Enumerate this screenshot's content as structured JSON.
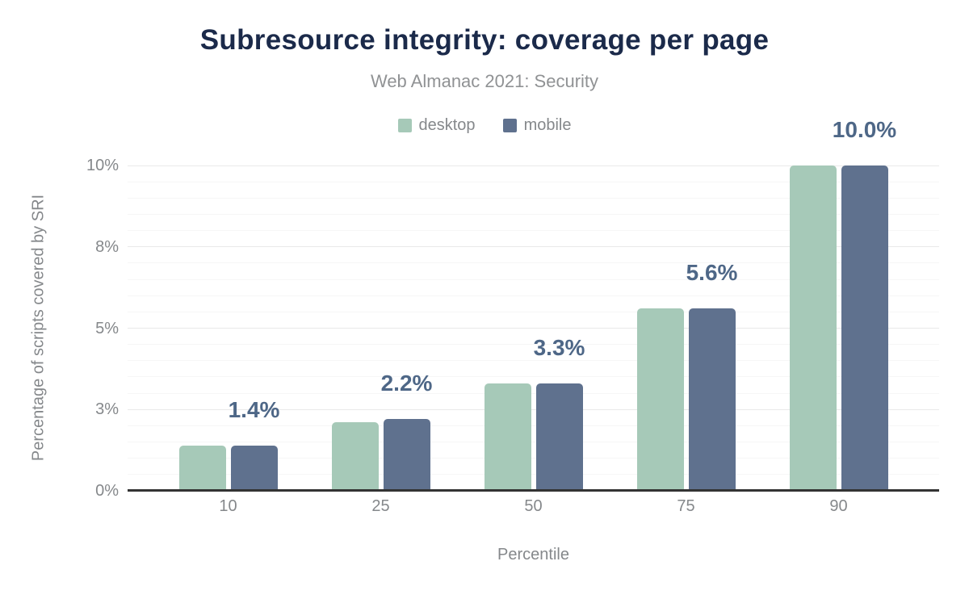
{
  "chart_data": {
    "type": "bar",
    "title": "Subresource integrity: coverage per page",
    "subtitle": "Web Almanac 2021: Security",
    "xlabel": "Percentile",
    "ylabel": "Percentage of scripts covered by SRI",
    "categories": [
      "10",
      "25",
      "50",
      "75",
      "90"
    ],
    "series": [
      {
        "name": "desktop",
        "color": "#a6c9b8",
        "values": [
          1.4,
          2.1,
          3.3,
          5.6,
          10.0
        ]
      },
      {
        "name": "mobile",
        "color": "#5f718e",
        "values": [
          1.4,
          2.2,
          3.3,
          5.6,
          10.0
        ]
      }
    ],
    "bar_labels": [
      "1.4%",
      "2.2%",
      "3.3%",
      "5.6%",
      "10.0%"
    ],
    "bar_labels_for_series": "mobile",
    "ylim": [
      0,
      10
    ],
    "y_ticks": [
      {
        "label": "0%",
        "value": 0
      },
      {
        "label": "3%",
        "value": 2.5
      },
      {
        "label": "5%",
        "value": 5
      },
      {
        "label": "8%",
        "value": 7.5
      },
      {
        "label": "10%",
        "value": 10
      }
    ],
    "y_minor_step": 0.5,
    "grid": true,
    "legend_position": "top-center",
    "colors": {
      "title": "#1b2a4a",
      "subtitle": "#909294",
      "axis_text": "#85888b",
      "value_label": "#4e6787",
      "axis_line": "#333333",
      "grid_major": "#e9e9e9",
      "grid_minor": "#f6f6f6",
      "background": "#ffffff"
    }
  }
}
